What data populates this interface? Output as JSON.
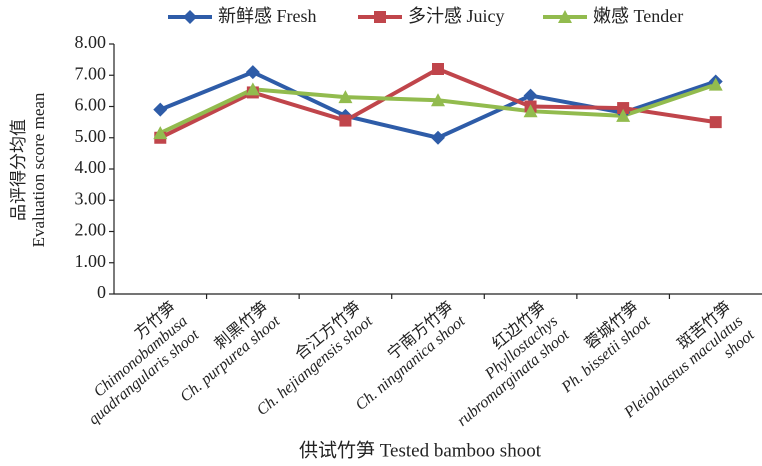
{
  "chart_data": {
    "type": "line",
    "categories": [
      [
        "方竹笋",
        "Chimonobambusa",
        "quadrangularis shoot"
      ],
      [
        "刺黑竹笋",
        "Ch. purpurea shoot"
      ],
      [
        "合江方竹笋",
        "Ch. hejiangensis shoot"
      ],
      [
        "宁南方竹笋",
        "Ch. ningnanica shoot"
      ],
      [
        "红边竹笋",
        "Phyllostachys",
        "rubromarginata shoot"
      ],
      [
        "蓉城竹笋",
        "Ph. bissetii shoot"
      ],
      [
        "斑苦竹笋",
        "Pleioblastus maculatus",
        "shoot"
      ]
    ],
    "series": [
      {
        "name": "新鲜感 Fresh",
        "color": "#2e5ca8",
        "marker": "diamond",
        "values": [
          5.9,
          7.1,
          5.7,
          5.0,
          6.35,
          5.8,
          6.8
        ]
      },
      {
        "name": "多汁感 Juicy",
        "color": "#c0454b",
        "marker": "square",
        "values": [
          5.0,
          6.45,
          5.55,
          7.2,
          6.0,
          5.95,
          5.5
        ]
      },
      {
        "name": "嫩感 Tender",
        "color": "#92bb4e",
        "marker": "triangle",
        "values": [
          5.15,
          6.55,
          6.3,
          6.2,
          5.85,
          5.7,
          6.7
        ]
      }
    ],
    "y_label": [
      "品评得分均值",
      "Evaluation score mean"
    ],
    "x_label": "供试竹笋 Tested bamboo shoot",
    "ylim": [
      0,
      8
    ],
    "yticks": [
      0,
      {
        "value": 1,
        "label": "1.00"
      },
      {
        "value": 2,
        "label": "2.00"
      },
      {
        "value": 3,
        "label": "3.00"
      },
      {
        "value": 4,
        "label": "4.00"
      },
      {
        "value": 5,
        "label": "5.00"
      },
      {
        "value": 6,
        "label": "6.00"
      },
      {
        "value": 7,
        "label": "7.00"
      },
      {
        "value": 8,
        "label": "8.00"
      }
    ],
    "legend": "top",
    "grid": false
  }
}
